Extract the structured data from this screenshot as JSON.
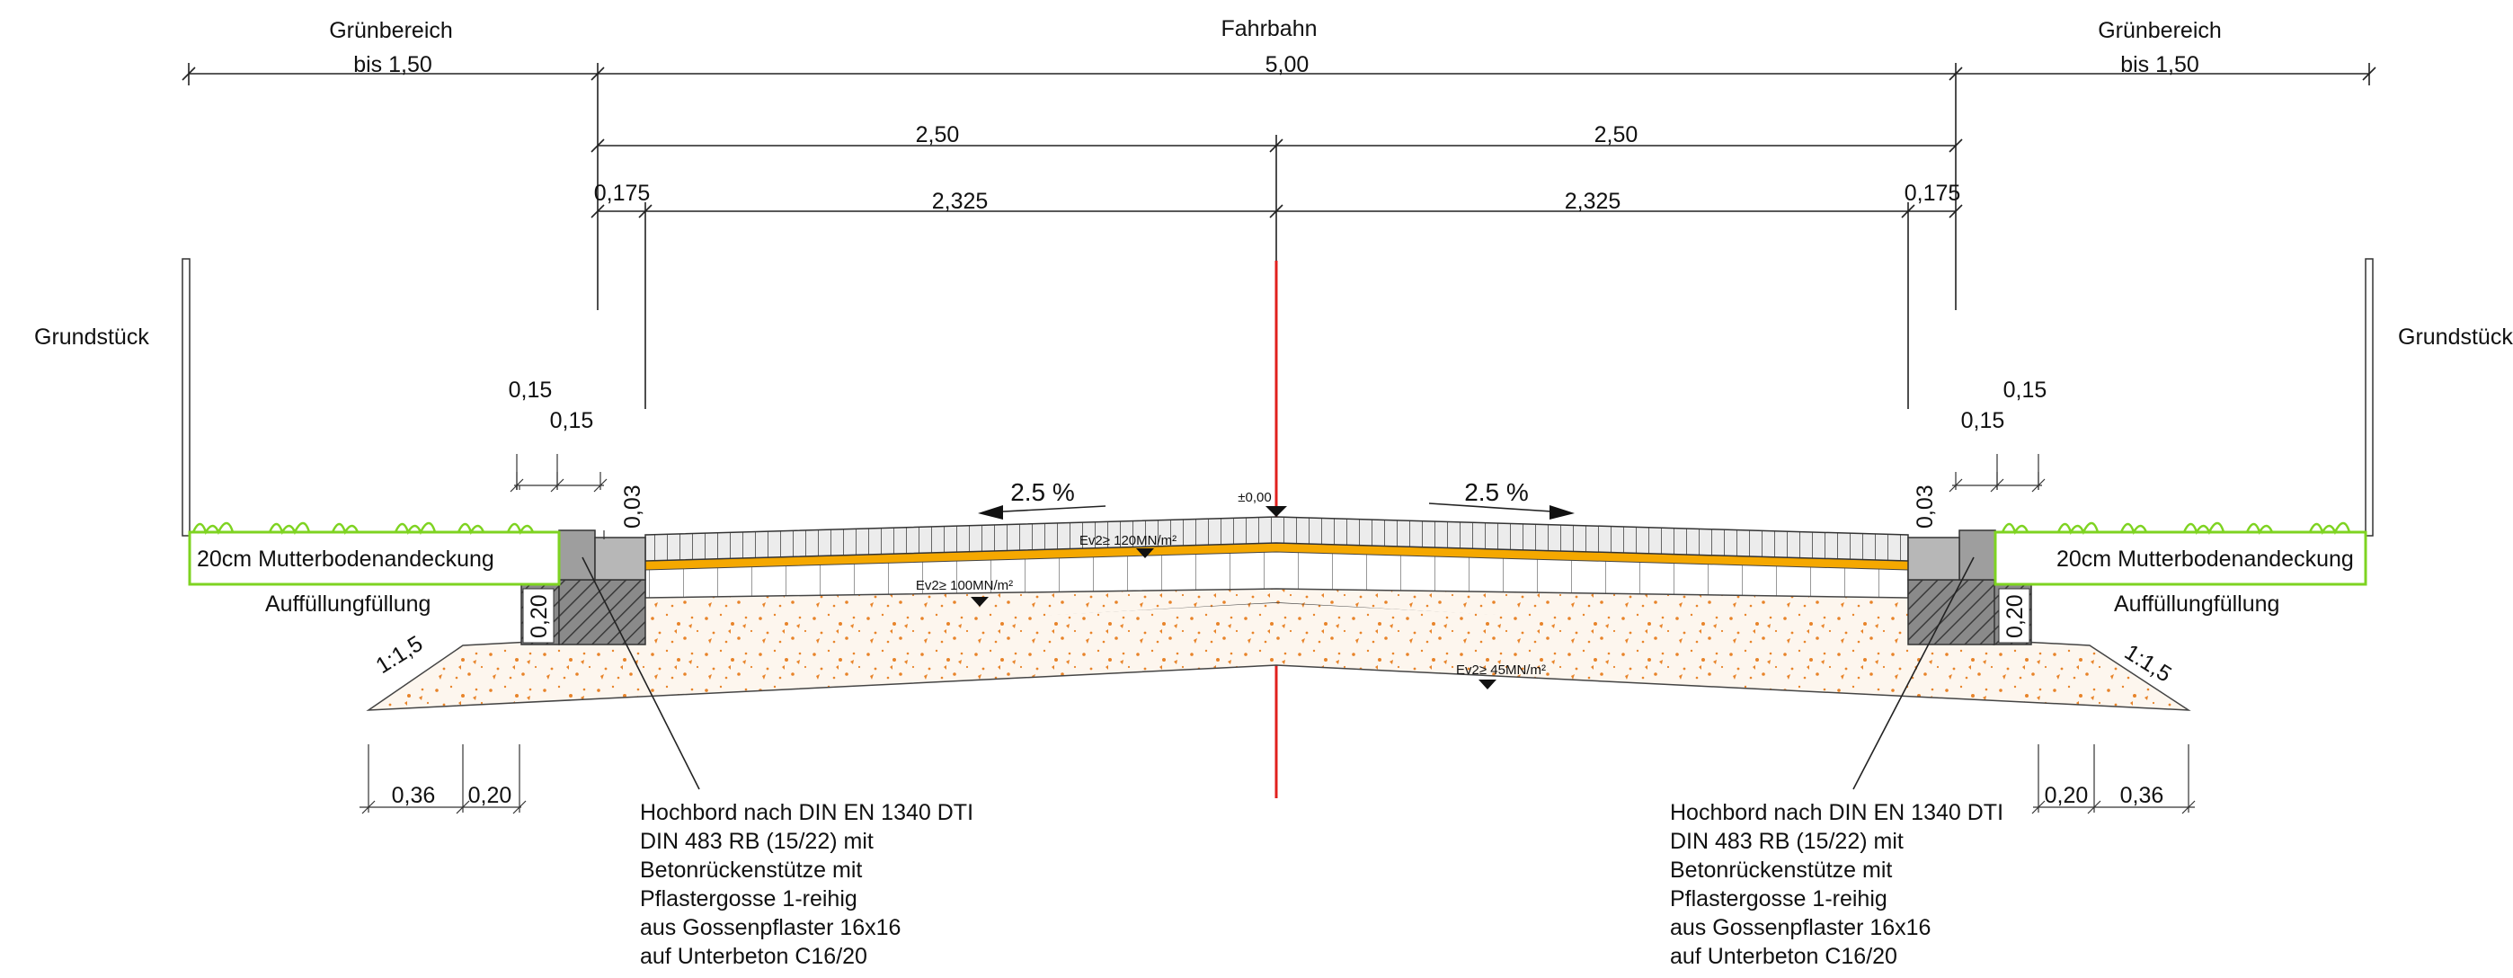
{
  "labels": {
    "gruen_left": "Grünbereich",
    "gruen_right": "Grünbereich",
    "fahrbahn": "Fahrbahn",
    "grundstueck_left": "Grundstück",
    "grundstueck_right": "Grundstück",
    "mutterboden_left": "20cm Mutterbodenandeckung",
    "mutterboden_right": "20cm Mutterbodenandeckung",
    "auffuellung_left": "Auffüllungfüllung",
    "auffuellung_right": "Auffüllungfüllung",
    "zero_level": "±0,00",
    "slope_left": "2.5 %",
    "slope_right": "2.5 %",
    "embank_left": "1:1,5",
    "embank_right": "1:1,5",
    "ev2_120": "Ev2≥ 120MN/m²",
    "ev2_100": "Ev2≥ 100MN/m²",
    "ev2_45": "Ev2≥ 45MN/m²"
  },
  "dimensions": {
    "gruen_width_left": "bis 1,50",
    "road_total": "5,00",
    "gruen_width_right": "bis 1,50",
    "half_left": "2,50",
    "half_right": "2,50",
    "curb_left": "0,175",
    "lane_left": "2,325",
    "lane_right": "2,325",
    "curb_right": "0,175",
    "curb_outer_left": "0,15",
    "curb_inner_left": "0,15",
    "curb_outer_right": "0,15",
    "curb_inner_right": "0,15",
    "rise_left": "0,03",
    "rise_right": "0,03",
    "depth_left": "0,20",
    "depth_right": "0,20",
    "base_left_a": "0,36",
    "base_left_b": "0,20",
    "base_right_a": "0,20",
    "base_right_b": "0,36"
  },
  "notes": {
    "curb_left": [
      "Hochbord nach DIN EN 1340 DTI",
      "DIN 483 RB (15/22) mit",
      "Betonrückenstütze mit",
      "Pflastergosse 1-reihig",
      "aus Gossenpflaster 16x16",
      "auf Unterbeton C16/20"
    ],
    "curb_right": [
      "Hochbord nach DIN EN 1340 DTI",
      "DIN 483 RB (15/22) mit",
      "Betonrückenstütze mit",
      "Pflastergosse 1-reihig",
      "aus Gossenpflaster 16x16",
      "auf Unterbeton C16/20"
    ]
  },
  "colors": {
    "axis": "#e0201e",
    "grass": "#7ed321",
    "sand": "#e8842a",
    "binder": "#f5a800",
    "paving": "#555555",
    "concrete": "#9e9e9e"
  }
}
